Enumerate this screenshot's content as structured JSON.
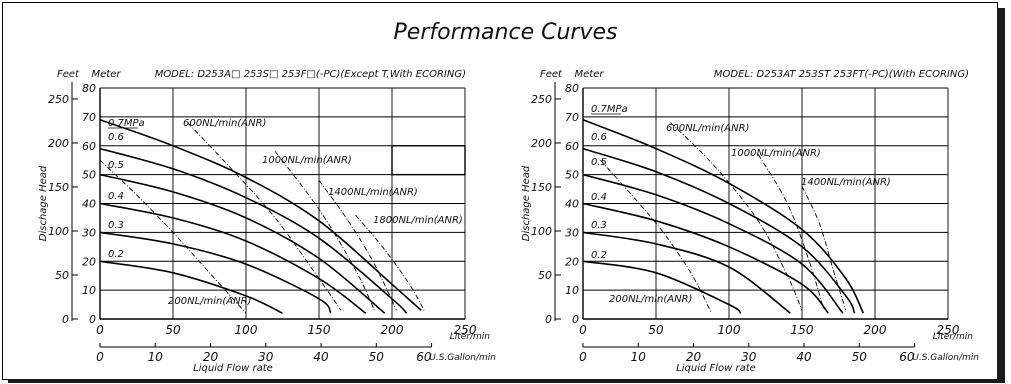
{
  "title": "Performance Curves",
  "chart_data": [
    {
      "type": "line",
      "model": "MODEL: D253A□ 253S□ 253F□(-PC)(Except T,With ECORING)",
      "xlabel": "Liquid Flow rate",
      "ylabel": "Dischage Head",
      "x_unit": "Liter/min",
      "x2_unit": "U.S.Gallon/min",
      "y_units": [
        "Feet",
        "Meter"
      ],
      "xlim": [
        0,
        250
      ],
      "ylim_meter": [
        0,
        80
      ],
      "x_ticks": [
        "0",
        "50",
        "100",
        "150",
        "200",
        "250"
      ],
      "x2_ticks": [
        "0",
        "10",
        "20",
        "30",
        "40",
        "50",
        "60"
      ],
      "y_meter_ticks": [
        "0",
        "10",
        "20",
        "30",
        "40",
        "50",
        "60",
        "70",
        "80"
      ],
      "y_feet_ticks": [
        "0",
        "50",
        "100",
        "150",
        "200",
        "250"
      ],
      "grid": true,
      "pressure_series": [
        {
          "name": "0.7MPa",
          "x": [
            0,
            50,
            100,
            150,
            200,
            220
          ],
          "y": [
            69,
            60,
            49,
            34,
            12,
            3
          ]
        },
        {
          "name": "0.6",
          "x": [
            0,
            50,
            100,
            150,
            200,
            210
          ],
          "y": [
            59,
            52,
            42,
            28,
            7,
            2
          ]
        },
        {
          "name": "0.5",
          "x": [
            0,
            50,
            100,
            150,
            195
          ],
          "y": [
            50,
            44,
            35,
            21,
            2
          ]
        },
        {
          "name": "0.4",
          "x": [
            0,
            50,
            100,
            150,
            182
          ],
          "y": [
            40,
            35,
            27,
            14,
            2
          ]
        },
        {
          "name": "0.3",
          "x": [
            0,
            50,
            100,
            150,
            158
          ],
          "y": [
            30,
            26,
            19,
            7,
            2
          ]
        },
        {
          "name": "0.2",
          "x": [
            0,
            50,
            100,
            125
          ],
          "y": [
            20,
            16,
            8,
            2
          ]
        }
      ],
      "air_series": [
        {
          "name": "200NL/min(ANR)",
          "x": [
            0,
            25,
            50,
            75,
            100
          ],
          "y": [
            55,
            43,
            30,
            16,
            2
          ]
        },
        {
          "name": "600NL/min(ANR)",
          "x": [
            60,
            90,
            120,
            150,
            165
          ],
          "y": [
            68,
            52,
            35,
            14,
            3
          ]
        },
        {
          "name": "1000NL/min(ANR)",
          "x": [
            120,
            150,
            175,
            188
          ],
          "y": [
            58,
            38,
            17,
            3
          ]
        },
        {
          "name": "1400NL/min(ANR)",
          "x": [
            150,
            170,
            188,
            203
          ],
          "y": [
            48,
            34,
            19,
            3
          ]
        },
        {
          "name": "1800NL/min(ANR)",
          "x": [
            175,
            195,
            212,
            222
          ],
          "y": [
            36,
            24,
            12,
            3
          ]
        }
      ],
      "annotations": [
        "0.7MPa",
        "0.6",
        "0.5",
        "0.4",
        "0.3",
        "0.2",
        "600NL/min(ANR)",
        "1000NL/min(ANR)",
        "1400NL/min(ANR)",
        "1800NL/min(ANR)",
        "200NL/min(ANR)"
      ]
    },
    {
      "type": "line",
      "model": "MODEL: D253AT 253ST 253FT(-PC)(With ECORING)",
      "xlabel": "Liquid Flow rate",
      "ylabel": "Dischage Head",
      "x_unit": "Liter/min",
      "x2_unit": "U.S.Gallon/min",
      "y_units": [
        "Feet",
        "Meter"
      ],
      "xlim": [
        0,
        250
      ],
      "ylim_meter": [
        0,
        80
      ],
      "x_ticks": [
        "0",
        "50",
        "100",
        "150",
        "200",
        "250"
      ],
      "x2_ticks": [
        "0",
        "10",
        "20",
        "30",
        "40",
        "50",
        "60"
      ],
      "y_meter_ticks": [
        "0",
        "10",
        "20",
        "30",
        "40",
        "50",
        "60",
        "70",
        "80"
      ],
      "y_feet_ticks": [
        "0",
        "50",
        "100",
        "150",
        "200",
        "250"
      ],
      "grid": true,
      "pressure_series": [
        {
          "name": "0.7MPa",
          "x": [
            0,
            50,
            100,
            150,
            180,
            192
          ],
          "y": [
            69,
            59,
            47,
            31,
            14,
            2
          ]
        },
        {
          "name": "0.6",
          "x": [
            0,
            50,
            100,
            150,
            180,
            186
          ],
          "y": [
            59,
            51,
            40,
            25,
            8,
            2
          ]
        },
        {
          "name": "0.5",
          "x": [
            0,
            50,
            100,
            150,
            178
          ],
          "y": [
            50,
            43,
            33,
            19,
            2
          ]
        },
        {
          "name": "0.4",
          "x": [
            0,
            50,
            100,
            150,
            168
          ],
          "y": [
            40,
            34,
            25,
            12,
            2
          ]
        },
        {
          "name": "0.3",
          "x": [
            0,
            50,
            100,
            142
          ],
          "y": [
            30,
            26,
            18,
            2
          ]
        },
        {
          "name": "0.2",
          "x": [
            0,
            50,
            100,
            108
          ],
          "y": [
            20,
            16,
            5,
            2
          ]
        }
      ],
      "air_series": [
        {
          "name": "200NL/min(ANR)",
          "x": [
            12,
            35,
            55,
            75,
            88
          ],
          "y": [
            55,
            42,
            30,
            15,
            2
          ]
        },
        {
          "name": "600NL/min(ANR)",
          "x": [
            60,
            90,
            120,
            140,
            150
          ],
          "y": [
            68,
            53,
            34,
            15,
            3
          ]
        },
        {
          "name": "1000NL/min(ANR)",
          "x": [
            120,
            140,
            155,
            165
          ],
          "y": [
            57,
            40,
            20,
            3
          ]
        },
        {
          "name": "1400NL/min(ANR)",
          "x": [
            150,
            162,
            172,
            180
          ],
          "y": [
            46,
            33,
            16,
            3
          ]
        }
      ],
      "annotations": [
        "0.7MPa",
        "0.6",
        "0.5",
        "0.4",
        "0.3",
        "0.2",
        "600NL/min(ANR)",
        "1000NL/min(ANR)",
        "1400NL/min(ANR)",
        "200NL/min(ANR)"
      ]
    }
  ]
}
